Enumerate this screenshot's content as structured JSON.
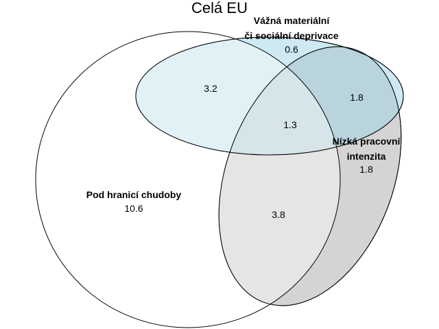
{
  "title": "Celá EU",
  "sets": {
    "poverty": {
      "label": "Pod hranicí chudoby",
      "value": "10.6",
      "fill": "#ffffff"
    },
    "deprivation": {
      "label_line1": "Vážná materiální",
      "label_line2": "či sociální deprivace",
      "value": "0.6",
      "fill": "#9ed3e6"
    },
    "work_intensity": {
      "label_line1": "Nízká pracovní",
      "label_line2": "intenzita",
      "value": "1.8",
      "fill": "#cfcfcf"
    }
  },
  "intersections": {
    "poverty_deprivation": "3.2",
    "deprivation_work": "1.8",
    "all_three": "1.3",
    "poverty_work": "3.8"
  }
}
